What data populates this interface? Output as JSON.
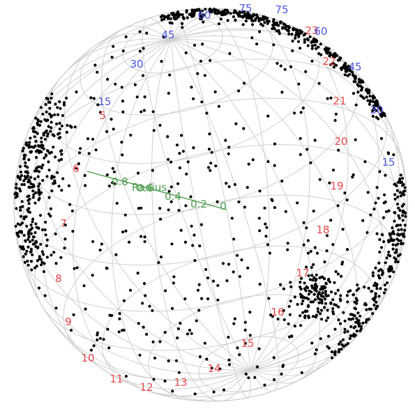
{
  "chart_data": {
    "type": "scatter",
    "projection": "3d-sphere",
    "grid": true,
    "colors": {
      "points": "#000000",
      "grid": "#cfcfcf",
      "hour_labels": "#e8484a",
      "dec_labels": "#4b56e0",
      "radius_axis": "#4f9e4f"
    },
    "ra_hour_ticks": [
      "5",
      "6",
      "7",
      "8",
      "9",
      "10",
      "11",
      "12",
      "13",
      "14",
      "15",
      "16",
      "17",
      "18",
      "19",
      "20",
      "21",
      "22",
      "23"
    ],
    "dec_ticks": [
      "15",
      "30",
      "45",
      "60",
      "75",
      "75",
      "60",
      "45",
      "30",
      "15"
    ],
    "radius_axis": {
      "label": "Radius",
      "ticks": [
        "0.8",
        "0.6",
        "0.4",
        "0.2",
        "0"
      ]
    },
    "point_count": 1500
  }
}
